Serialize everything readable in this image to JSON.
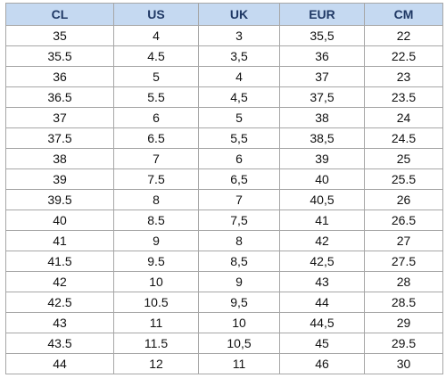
{
  "table": {
    "columns": [
      "CL",
      "US",
      "UK",
      "EUR",
      "CM"
    ],
    "rows": [
      [
        "35",
        "4",
        "3",
        "35,5",
        "22"
      ],
      [
        "35.5",
        "4.5",
        "3,5",
        "36",
        "22.5"
      ],
      [
        "36",
        "5",
        "4",
        "37",
        "23"
      ],
      [
        "36.5",
        "5.5",
        "4,5",
        "37,5",
        "23.5"
      ],
      [
        "37",
        "6",
        "5",
        "38",
        "24"
      ],
      [
        "37.5",
        "6.5",
        "5,5",
        "38,5",
        "24.5"
      ],
      [
        "38",
        "7",
        "6",
        "39",
        "25"
      ],
      [
        "39",
        "7.5",
        "6,5",
        "40",
        "25.5"
      ],
      [
        "39.5",
        "8",
        "7",
        "40,5",
        "26"
      ],
      [
        "40",
        "8.5",
        "7,5",
        "41",
        "26.5"
      ],
      [
        "41",
        "9",
        "8",
        "42",
        "27"
      ],
      [
        "41.5",
        "9.5",
        "8,5",
        "42,5",
        "27.5"
      ],
      [
        "42",
        "10",
        "9",
        "43",
        "28"
      ],
      [
        "42.5",
        "10.5",
        "9,5",
        "44",
        "28.5"
      ],
      [
        "43",
        "11",
        "10",
        "44,5",
        "29"
      ],
      [
        "43.5",
        "11.5",
        "10,5",
        "45",
        "29.5"
      ],
      [
        "44",
        "12",
        "11",
        "46",
        "30"
      ]
    ]
  }
}
